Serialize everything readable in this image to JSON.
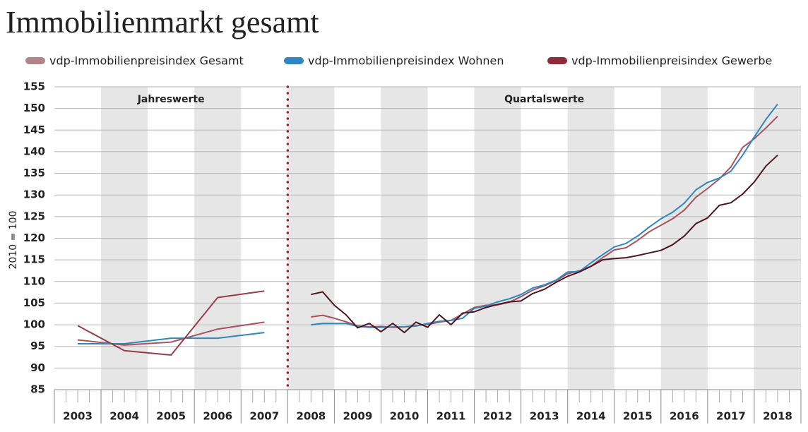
{
  "chart_data": {
    "type": "line",
    "title": "Immobilienmarkt gesamt",
    "y_label": "2010 = 100",
    "annotations": [
      "Jahreswerte",
      "Quartalswerte"
    ],
    "x_annual": [
      2003,
      2004,
      2005,
      2006,
      2007
    ],
    "x_quarterly": [
      2008,
      2008.25,
      2008.5,
      2008.75,
      2009,
      2009.25,
      2009.5,
      2009.75,
      2010,
      2010.25,
      2010.5,
      2010.75,
      2011,
      2011.25,
      2011.5,
      2011.75,
      2012,
      2012.25,
      2012.5,
      2012.75,
      2013,
      2013.25,
      2013.5,
      2013.75,
      2014,
      2014.25,
      2014.5,
      2014.75,
      2015,
      2015.25,
      2015.5,
      2015.75,
      2016,
      2016.25,
      2016.5,
      2016.75,
      2017,
      2017.25,
      2017.5,
      2017.75,
      2018
    ],
    "series": [
      {
        "name": "vdp-Immobilienpreisindex Gesamt",
        "color": "#a8535e",
        "legend_color": "#b08589",
        "annual": [
          96.5,
          95.3,
          96.0,
          99.0,
          100.6
        ],
        "quarterly": [
          101.8,
          102.2,
          101.5,
          100.7,
          99.7,
          99.5,
          99.6,
          99.4,
          99.5,
          99.8,
          100.1,
          100.6,
          101.0,
          102.5,
          104.0,
          104.5,
          104.6,
          105.2,
          106.5,
          108.0,
          109.0,
          110.2,
          111.8,
          112.5,
          113.5,
          115.5,
          117.3,
          117.8,
          119.5,
          121.5,
          123.0,
          124.5,
          126.5,
          129.5,
          131.5,
          133.7,
          136.5,
          141.0,
          143.0,
          145.5,
          148.2
        ]
      },
      {
        "name": "vdp-Immobilienpreisindex Wohnen",
        "color": "#2f87bf",
        "legend_color": "#2f87bf",
        "annual": [
          95.6,
          95.6,
          96.9,
          96.9,
          98.2
        ],
        "quarterly": [
          100.0,
          100.3,
          100.3,
          100.3,
          99.6,
          99.4,
          99.4,
          99.5,
          99.5,
          99.7,
          100.3,
          100.8,
          101.0,
          101.5,
          103.8,
          104.3,
          105.3,
          106.0,
          107.0,
          108.5,
          109.2,
          110.3,
          112.2,
          112.3,
          114.3,
          116.2,
          118.0,
          118.8,
          120.5,
          122.6,
          124.5,
          126.0,
          128.1,
          131.2,
          132.9,
          133.9,
          135.5,
          139.2,
          143.4,
          147.5,
          151.0
        ]
      },
      {
        "name": "vdp-Immobilienpreisindex Gewerbe",
        "color": "#4e1520",
        "annual_color": "#983c4a",
        "legend_color": "#8e2b3b",
        "annual": [
          99.8,
          94.0,
          93.0,
          106.3,
          107.8
        ],
        "quarterly": [
          107.0,
          107.6,
          104.5,
          102.3,
          99.3,
          100.3,
          98.4,
          100.3,
          98.2,
          100.6,
          99.4,
          102.3,
          100.0,
          102.7,
          103.0,
          104.0,
          104.7,
          105.3,
          105.5,
          107.2,
          108.2,
          109.8,
          111.2,
          112.2,
          113.5,
          115.0,
          115.3,
          115.5,
          116.0,
          116.6,
          117.2,
          118.5,
          120.5,
          123.4,
          124.7,
          127.6,
          128.2,
          130.2,
          133.0,
          136.7,
          139.2
        ]
      }
    ],
    "xlim": [
      2002.5,
      2018.5
    ],
    "xticks": [
      2003,
      2004,
      2005,
      2006,
      2007,
      2008,
      2009,
      2010,
      2011,
      2012,
      2013,
      2014,
      2015,
      2016,
      2017,
      2018
    ],
    "ylim": [
      85,
      155
    ],
    "yticks": [
      85,
      90,
      95,
      100,
      105,
      110,
      115,
      120,
      125,
      130,
      135,
      140,
      145,
      150,
      155
    ],
    "grid": true,
    "divider_color": "#8e2b3b"
  }
}
